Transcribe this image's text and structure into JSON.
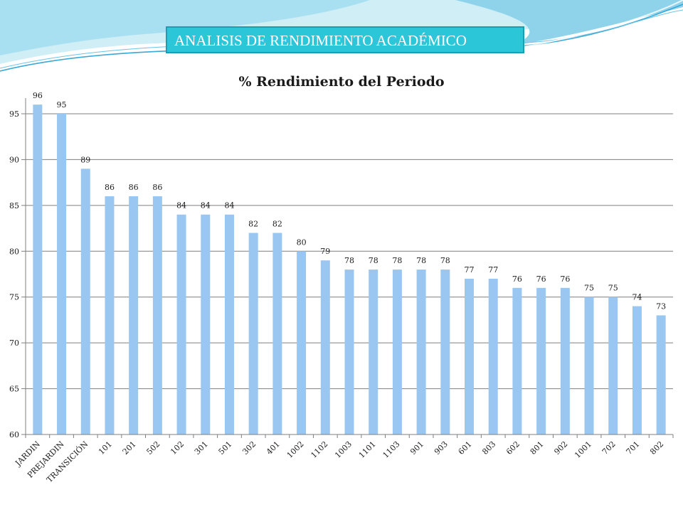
{
  "banner": {
    "title": "ANALISIS DE RENDIMIENTO ACADÉMICO"
  },
  "colors": {
    "bar": "#99c7f2",
    "banner_bg": "#2bc6d8",
    "banner_border": "#1a9fb0",
    "decor_light": "#cfeef6",
    "decor_mid": "#8fd3ea",
    "decor_dark": "#3aa8d8"
  },
  "chart_data": {
    "type": "bar",
    "title": "% Rendimiento del Periodo",
    "xlabel": "",
    "ylabel": "",
    "ylim": [
      60,
      95
    ],
    "yticks": [
      60,
      65,
      70,
      75,
      80,
      85,
      90,
      95
    ],
    "grid": true,
    "legend": "none",
    "categories": [
      "JARDIN",
      "PREJARDIN",
      "TRANSICIÓN",
      "101",
      "201",
      "502",
      "102",
      "301",
      "501",
      "302",
      "401",
      "1002",
      "1102",
      "1003",
      "1101",
      "1103",
      "901",
      "903",
      "601",
      "803",
      "602",
      "801",
      "902",
      "1001",
      "702",
      "701",
      "802"
    ],
    "values": [
      96,
      95,
      89,
      86,
      86,
      86,
      84,
      84,
      84,
      82,
      82,
      80,
      79,
      78,
      78,
      78,
      78,
      78,
      77,
      77,
      76,
      76,
      76,
      75,
      75,
      74,
      73
    ]
  }
}
